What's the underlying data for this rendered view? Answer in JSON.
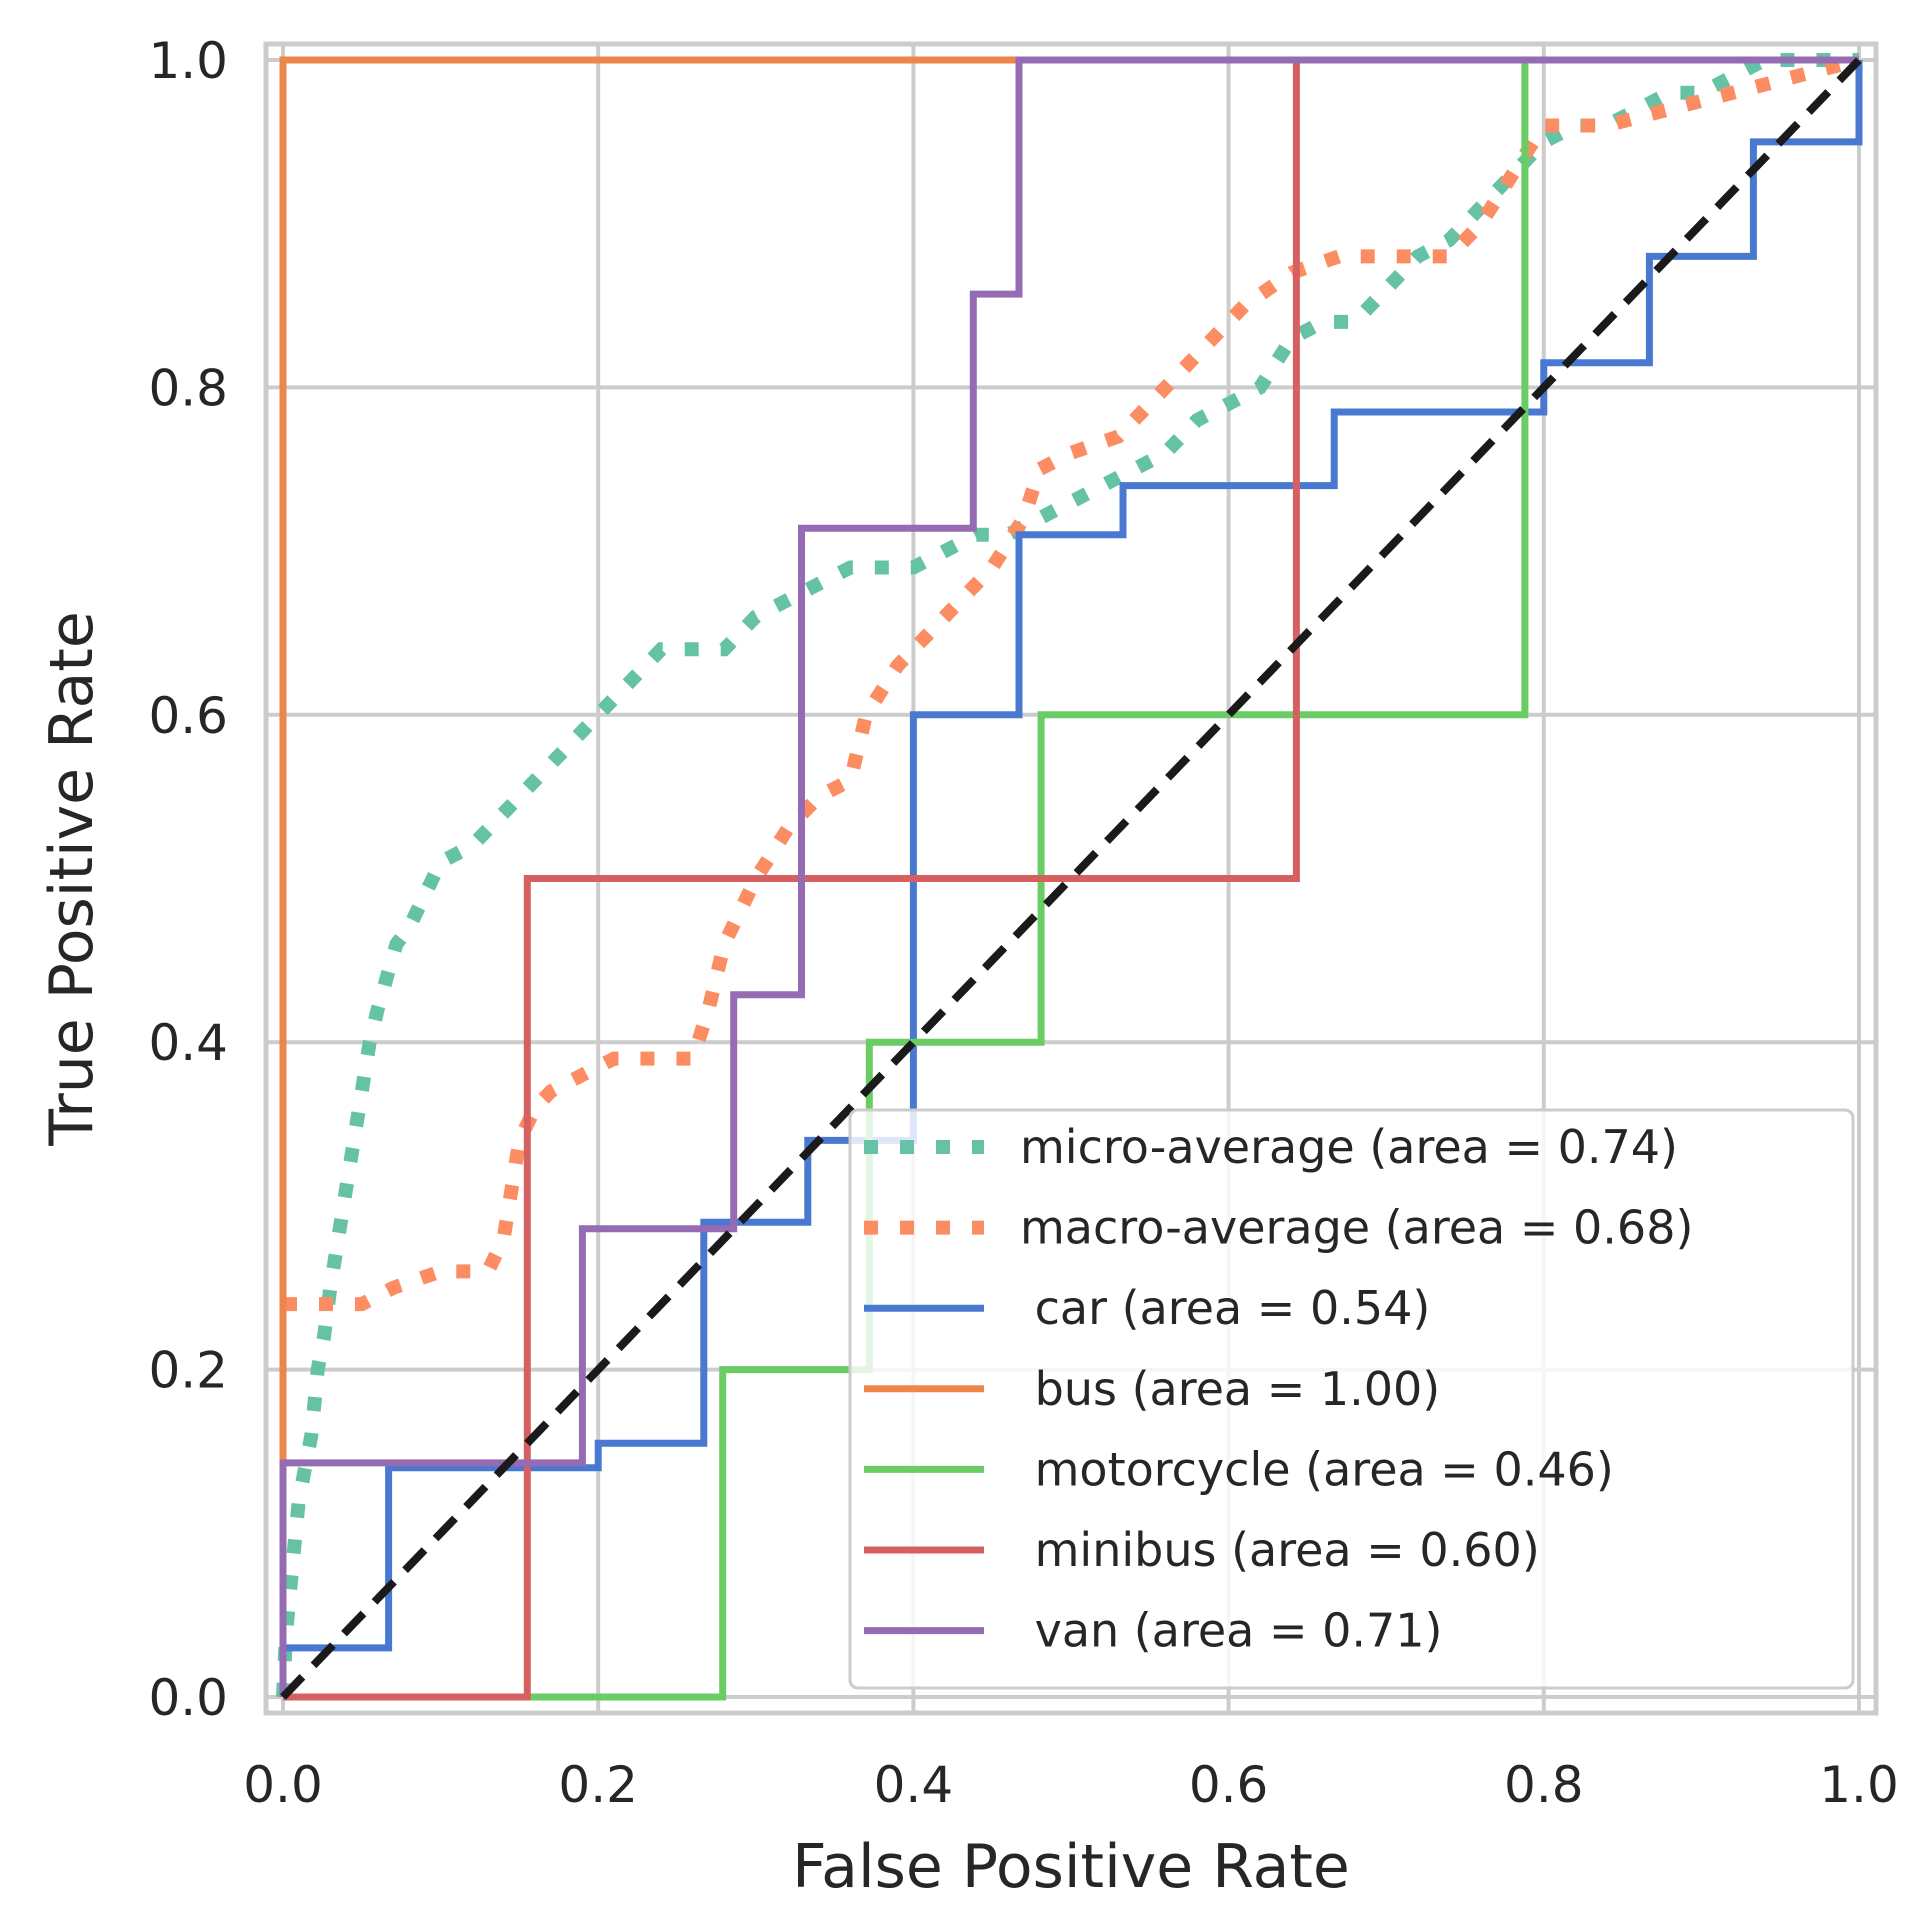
{
  "chart_data": {
    "type": "line",
    "title": "",
    "xlabel": "False Positive Rate",
    "ylabel": "True Positive Rate",
    "xlim": [
      0.0,
      1.0
    ],
    "ylim": [
      0.0,
      1.0
    ],
    "xticks": [
      "0.0",
      "0.2",
      "0.4",
      "0.6",
      "0.8",
      "1.0"
    ],
    "yticks": [
      "0.0",
      "0.2",
      "0.4",
      "0.6",
      "0.8",
      "1.0"
    ],
    "grid": true,
    "legend_position": "bottom-right",
    "colors": {
      "micro": "#66c2a5",
      "macro": "#fc8d62",
      "car": "#4878d0",
      "bus": "#ee854a",
      "motorcycle": "#6acc64",
      "minibus": "#d65f5f",
      "van": "#956cb4",
      "chance": "#1a1a1a"
    },
    "series": [
      {
        "key": "micro",
        "name": "micro-average (area = 0.74)",
        "style": "dotted",
        "x": [
          0.0,
          0.002,
          0.004,
          0.007,
          0.01,
          0.014,
          0.018,
          0.022,
          0.026,
          0.03,
          0.035,
          0.04,
          0.045,
          0.05,
          0.055,
          0.06,
          0.066,
          0.072,
          0.08,
          0.09,
          0.1,
          0.12,
          0.14,
          0.16,
          0.18,
          0.2,
          0.22,
          0.24,
          0.26,
          0.28,
          0.3,
          0.32,
          0.34,
          0.36,
          0.38,
          0.4,
          0.42,
          0.44,
          0.46,
          0.48,
          0.5,
          0.52,
          0.54,
          0.56,
          0.58,
          0.6,
          0.62,
          0.64,
          0.66,
          0.68,
          0.7,
          0.72,
          0.74,
          0.76,
          0.78,
          0.8,
          0.82,
          0.84,
          0.86,
          0.88,
          0.9,
          0.92,
          0.94,
          0.96,
          0.98,
          1.0
        ],
        "y": [
          0.0,
          0.04,
          0.06,
          0.09,
          0.12,
          0.14,
          0.16,
          0.2,
          0.22,
          0.25,
          0.28,
          0.31,
          0.34,
          0.37,
          0.4,
          0.42,
          0.44,
          0.46,
          0.47,
          0.49,
          0.51,
          0.52,
          0.54,
          0.56,
          0.58,
          0.6,
          0.62,
          0.64,
          0.64,
          0.64,
          0.66,
          0.67,
          0.68,
          0.69,
          0.69,
          0.69,
          0.7,
          0.71,
          0.71,
          0.72,
          0.73,
          0.74,
          0.75,
          0.76,
          0.78,
          0.79,
          0.8,
          0.83,
          0.84,
          0.84,
          0.86,
          0.88,
          0.89,
          0.91,
          0.93,
          0.95,
          0.96,
          0.96,
          0.97,
          0.98,
          0.98,
          0.99,
          1.0,
          1.0,
          1.0,
          1.0
        ]
      },
      {
        "key": "macro",
        "name": "macro-average (area = 0.68)",
        "style": "dotted",
        "x": [
          0.0,
          0.02,
          0.05,
          0.07,
          0.1,
          0.13,
          0.14,
          0.15,
          0.16,
          0.17,
          0.19,
          0.21,
          0.23,
          0.26,
          0.27,
          0.28,
          0.3,
          0.32,
          0.34,
          0.36,
          0.37,
          0.39,
          0.41,
          0.43,
          0.45,
          0.47,
          0.48,
          0.5,
          0.53,
          0.55,
          0.58,
          0.61,
          0.64,
          0.67,
          0.7,
          0.72,
          0.74,
          0.76,
          0.78,
          0.8,
          0.84,
          0.88,
          0.92,
          0.96,
          1.0
        ],
        "y": [
          0.24,
          0.24,
          0.24,
          0.25,
          0.26,
          0.26,
          0.28,
          0.34,
          0.36,
          0.37,
          0.38,
          0.39,
          0.39,
          0.39,
          0.42,
          0.46,
          0.5,
          0.53,
          0.55,
          0.56,
          0.6,
          0.63,
          0.65,
          0.67,
          0.69,
          0.72,
          0.75,
          0.76,
          0.77,
          0.79,
          0.82,
          0.85,
          0.87,
          0.88,
          0.88,
          0.88,
          0.88,
          0.9,
          0.93,
          0.96,
          0.96,
          0.97,
          0.98,
          0.99,
          1.0
        ]
      },
      {
        "key": "car",
        "name": " car (area = 0.54)",
        "style": "solid",
        "x": [
          0.0,
          0.0,
          0.067,
          0.067,
          0.2,
          0.2,
          0.267,
          0.267,
          0.333,
          0.333,
          0.4,
          0.4,
          0.467,
          0.467,
          0.533,
          0.533,
          0.667,
          0.667,
          0.8,
          0.8,
          0.867,
          0.867,
          0.933,
          0.933,
          1.0,
          1.0
        ],
        "y": [
          0.0,
          0.03,
          0.03,
          0.14,
          0.14,
          0.155,
          0.155,
          0.29,
          0.29,
          0.34,
          0.34,
          0.6,
          0.6,
          0.71,
          0.71,
          0.74,
          0.74,
          0.785,
          0.785,
          0.815,
          0.815,
          0.88,
          0.88,
          0.95,
          0.95,
          1.0
        ]
      },
      {
        "key": "bus",
        "name": " bus (area = 1.00)",
        "style": "solid",
        "x": [
          0.0,
          0.0,
          1.0
        ],
        "y": [
          0.0,
          1.0,
          1.0
        ]
      },
      {
        "key": "motorcycle",
        "name": " motorcycle (area = 0.46)",
        "style": "solid",
        "x": [
          0.0,
          0.279,
          0.279,
          0.372,
          0.372,
          0.481,
          0.481,
          0.788,
          0.788,
          1.0
        ],
        "y": [
          0.0,
          0.0,
          0.2,
          0.2,
          0.4,
          0.4,
          0.6,
          0.6,
          1.0,
          1.0
        ]
      },
      {
        "key": "minibus",
        "name": " minibus (area = 0.60)",
        "style": "solid",
        "x": [
          0.0,
          0.155,
          0.155,
          0.643,
          0.643,
          1.0
        ],
        "y": [
          0.0,
          0.0,
          0.5,
          0.5,
          1.0,
          1.0
        ]
      },
      {
        "key": "van",
        "name": " van (area = 0.71)",
        "style": "solid",
        "x": [
          0.0,
          0.0,
          0.19,
          0.19,
          0.286,
          0.286,
          0.329,
          0.329,
          0.438,
          0.438,
          0.467,
          0.467,
          1.0
        ],
        "y": [
          0.0,
          0.143,
          0.143,
          0.286,
          0.286,
          0.429,
          0.429,
          0.714,
          0.714,
          0.857,
          0.857,
          1.0,
          1.0
        ]
      },
      {
        "key": "chance",
        "name": "",
        "style": "dashed",
        "x": [
          0.0,
          1.0
        ],
        "y": [
          0.0,
          1.0
        ]
      }
    ]
  }
}
